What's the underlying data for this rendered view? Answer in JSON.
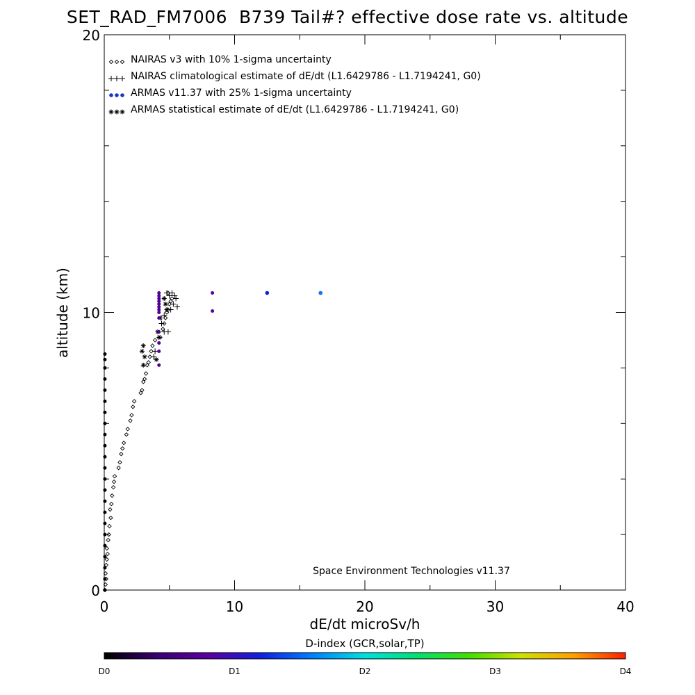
{
  "chart_data": {
    "type": "scatter",
    "title": "SET_RAD_FM7006  B739 Tail#? effective dose rate vs. altitude",
    "xlabel": "dE/dt microSv/h",
    "ylabel": "altitude (km)",
    "xlim": [
      0,
      40
    ],
    "ylim": [
      0,
      20
    ],
    "x_ticks": [
      0,
      10,
      20,
      30,
      40
    ],
    "y_ticks": [
      0,
      10,
      20
    ],
    "grid": false,
    "legend_position": "top-left",
    "credit": "Space Environment Technologies v11.37",
    "series": [
      {
        "name": "NAIRAS v3 with 10% 1-sigma uncertainty",
        "marker": "diamond",
        "color": "#000000",
        "points": [
          [
            0.05,
            0.0
          ],
          [
            0.1,
            0.2
          ],
          [
            0.15,
            0.4
          ],
          [
            0.1,
            0.6
          ],
          [
            0.15,
            0.9
          ],
          [
            0.2,
            1.1
          ],
          [
            0.25,
            1.3
          ],
          [
            0.2,
            1.5
          ],
          [
            0.3,
            1.8
          ],
          [
            0.35,
            2.0
          ],
          [
            0.4,
            2.3
          ],
          [
            0.5,
            2.6
          ],
          [
            0.45,
            2.9
          ],
          [
            0.55,
            3.1
          ],
          [
            0.6,
            3.4
          ],
          [
            0.7,
            3.7
          ],
          [
            0.75,
            3.9
          ],
          [
            0.8,
            4.1
          ],
          [
            1.1,
            4.4
          ],
          [
            1.2,
            4.6
          ],
          [
            1.3,
            4.9
          ],
          [
            1.4,
            5.1
          ],
          [
            1.5,
            5.3
          ],
          [
            1.7,
            5.6
          ],
          [
            1.8,
            5.8
          ],
          [
            2.0,
            6.1
          ],
          [
            2.1,
            6.3
          ],
          [
            2.2,
            6.6
          ],
          [
            2.3,
            6.8
          ],
          [
            2.8,
            7.1
          ],
          [
            2.9,
            7.2
          ],
          [
            3.0,
            7.5
          ],
          [
            3.1,
            7.6
          ],
          [
            3.2,
            7.8
          ],
          [
            3.3,
            8.1
          ],
          [
            3.4,
            8.2
          ],
          [
            3.5,
            8.4
          ],
          [
            3.6,
            8.6
          ],
          [
            3.7,
            8.8
          ],
          [
            3.9,
            9.0
          ],
          [
            4.3,
            9.1
          ],
          [
            4.5,
            9.4
          ],
          [
            4.6,
            9.6
          ],
          [
            4.7,
            9.8
          ],
          [
            4.8,
            10.0
          ],
          [
            4.9,
            10.1
          ],
          [
            5.0,
            10.3
          ],
          [
            5.1,
            10.4
          ],
          [
            5.2,
            10.5
          ],
          [
            4.9,
            10.7
          ]
        ]
      },
      {
        "name": "NAIRAS climatological estimate of dE/dt (L1.6429786 - L1.7194241, G0)",
        "marker": "plus",
        "color": "#000000",
        "points": [
          [
            4.8,
            10.7
          ],
          [
            5.0,
            10.6
          ],
          [
            5.2,
            10.7
          ],
          [
            5.4,
            10.6
          ],
          [
            5.5,
            10.5
          ],
          [
            5.3,
            10.3
          ],
          [
            5.6,
            10.2
          ],
          [
            5.1,
            10.1
          ],
          [
            4.6,
            9.9
          ],
          [
            4.4,
            9.6
          ],
          [
            4.6,
            9.3
          ],
          [
            4.9,
            9.3
          ],
          [
            3.9,
            8.6
          ],
          [
            3.8,
            8.4
          ]
        ]
      },
      {
        "name": "ARMAS v11.37 with 25% 1-sigma uncertainty",
        "marker": "dot",
        "color": "#1638c8",
        "points": [
          [
            12.5,
            10.7
          ],
          [
            16.6,
            10.7
          ]
        ]
      },
      {
        "name": "ARMAS statistical estimate of dE/dt (L1.6429786 - L1.7194241, G0)",
        "marker": "asterisk",
        "color": "#000000",
        "points": [
          [
            4.6,
            10.5
          ],
          [
            4.7,
            10.3
          ],
          [
            4.8,
            10.1
          ],
          [
            4.3,
            9.8
          ],
          [
            4.1,
            9.3
          ],
          [
            4.2,
            9.1
          ],
          [
            3.0,
            8.8
          ],
          [
            2.9,
            8.6
          ],
          [
            3.1,
            8.4
          ],
          [
            3.0,
            8.1
          ],
          [
            4.0,
            8.3
          ]
        ]
      }
    ],
    "d_index_points": [
      {
        "x": 4.2,
        "y": 10.7,
        "d": 0.7
      },
      {
        "x": 4.2,
        "y": 10.6,
        "d": 0.7
      },
      {
        "x": 4.2,
        "y": 10.5,
        "d": 0.7
      },
      {
        "x": 4.2,
        "y": 10.4,
        "d": 0.7
      },
      {
        "x": 4.2,
        "y": 10.3,
        "d": 0.7
      },
      {
        "x": 4.2,
        "y": 10.2,
        "d": 0.7
      },
      {
        "x": 4.2,
        "y": 10.1,
        "d": 0.7
      },
      {
        "x": 4.2,
        "y": 10.0,
        "d": 0.7
      },
      {
        "x": 4.2,
        "y": 9.8,
        "d": 0.7
      },
      {
        "x": 4.2,
        "y": 9.3,
        "d": 0.7
      },
      {
        "x": 4.2,
        "y": 8.9,
        "d": 0.7
      },
      {
        "x": 4.2,
        "y": 8.6,
        "d": 0.7
      },
      {
        "x": 4.2,
        "y": 8.1,
        "d": 0.7
      },
      {
        "x": 8.3,
        "y": 10.7,
        "d": 0.8
      },
      {
        "x": 8.3,
        "y": 10.05,
        "d": 0.75
      },
      {
        "x": 12.5,
        "y": 10.7,
        "d": 1.2
      },
      {
        "x": 16.6,
        "y": 10.7,
        "d": 1.6
      },
      {
        "x": 0.05,
        "y": 0.0,
        "d": 0.0
      },
      {
        "x": 0.05,
        "y": 0.4,
        "d": 0.0
      },
      {
        "x": 0.05,
        "y": 0.8,
        "d": 0.0
      },
      {
        "x": 0.05,
        "y": 1.2,
        "d": 0.0
      },
      {
        "x": 0.05,
        "y": 1.6,
        "d": 0.0
      },
      {
        "x": 0.05,
        "y": 2.0,
        "d": 0.0
      },
      {
        "x": 0.05,
        "y": 2.4,
        "d": 0.0
      },
      {
        "x": 0.05,
        "y": 2.8,
        "d": 0.0
      },
      {
        "x": 0.05,
        "y": 3.2,
        "d": 0.0
      },
      {
        "x": 0.05,
        "y": 3.6,
        "d": 0.0
      },
      {
        "x": 0.05,
        "y": 4.0,
        "d": 0.0
      },
      {
        "x": 0.05,
        "y": 4.4,
        "d": 0.0
      },
      {
        "x": 0.05,
        "y": 4.8,
        "d": 0.0
      },
      {
        "x": 0.05,
        "y": 5.2,
        "d": 0.0
      },
      {
        "x": 0.05,
        "y": 5.6,
        "d": 0.0
      },
      {
        "x": 0.05,
        "y": 6.0,
        "d": 0.0
      },
      {
        "x": 0.05,
        "y": 6.4,
        "d": 0.0
      },
      {
        "x": 0.05,
        "y": 6.8,
        "d": 0.0
      },
      {
        "x": 0.05,
        "y": 7.2,
        "d": 0.0
      },
      {
        "x": 0.05,
        "y": 7.6,
        "d": 0.0
      },
      {
        "x": 0.05,
        "y": 8.0,
        "d": 0.0
      },
      {
        "x": 0.05,
        "y": 8.3,
        "d": 0.0
      },
      {
        "x": 0.05,
        "y": 8.5,
        "d": 0.0
      }
    ],
    "colorbar": {
      "title": "D-index (GCR,solar,TP)",
      "labels": [
        {
          "text": "D0",
          "value": 0
        },
        {
          "text": "D1",
          "value": 1
        },
        {
          "text": "D2",
          "value": 2
        },
        {
          "text": "D3",
          "value": 3
        },
        {
          "text": "D4",
          "value": 4
        }
      ],
      "stops": [
        "#000000",
        "#3a0070",
        "#5a00a0",
        "#1020e0",
        "#0080ff",
        "#00e0e0",
        "#00e070",
        "#40e000",
        "#d0e000",
        "#ffa000",
        "#ff2000"
      ]
    }
  }
}
